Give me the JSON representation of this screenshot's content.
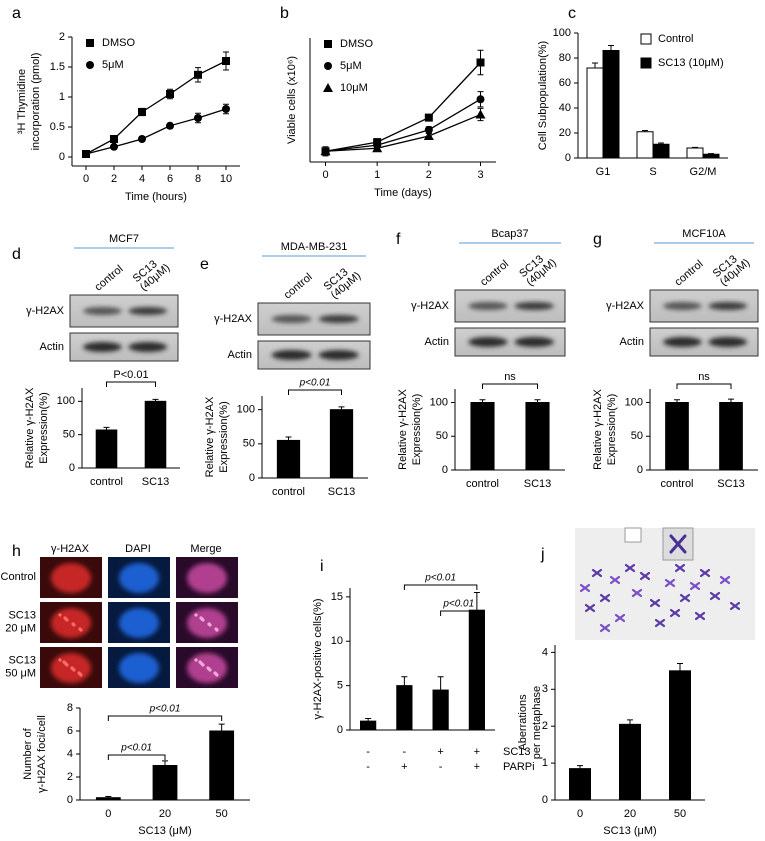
{
  "chart_data": [
    {
      "panel": "a",
      "type": "line",
      "xlabel": "Time (hours)",
      "ylabel": [
        "³H Thymidine",
        "incorporation (pmol)"
      ],
      "x": [
        0,
        2,
        4,
        6,
        8,
        10
      ],
      "xlim": [
        -1,
        11
      ],
      "xticks": [
        0,
        2,
        4,
        6,
        8,
        10
      ],
      "ylim": [
        -0.15,
        2
      ],
      "yticks": [
        0,
        0.5,
        1,
        1.5,
        2
      ],
      "legend": "upper left",
      "series": [
        {
          "name": "DMSO",
          "color": "#000000",
          "marker": "square",
          "values": [
            0.05,
            0.3,
            0.75,
            1.05,
            1.37,
            1.6
          ],
          "errors": [
            0.03,
            0.05,
            0.06,
            0.08,
            0.12,
            0.15
          ]
        },
        {
          "name": "5μM",
          "color": "#000000",
          "marker": "circle",
          "values": [
            0.05,
            0.17,
            0.3,
            0.52,
            0.65,
            0.8
          ],
          "errors": [
            0.02,
            0.03,
            0.04,
            0.04,
            0.08,
            0.08
          ]
        }
      ]
    },
    {
      "panel": "b",
      "type": "line",
      "xlabel": "Time (days)",
      "ylabel": [
        "Viable cells (x10⁶)"
      ],
      "x": [
        0,
        1,
        2,
        3
      ],
      "xlim": [
        -0.3,
        3.3
      ],
      "xticks": [
        0,
        1,
        2,
        3
      ],
      "ylim": [
        -0.25,
        3.8
      ],
      "legend": "upper left",
      "series": [
        {
          "name": "DMSO",
          "color": "#000000",
          "marker": "square",
          "values": [
            0.1,
            0.4,
            1.2,
            3.0
          ],
          "errors": [
            0.15,
            0.08,
            0.1,
            0.4
          ]
        },
        {
          "name": "5μM",
          "color": "#000000",
          "marker": "circle",
          "values": [
            0.1,
            0.3,
            0.8,
            1.8
          ],
          "errors": [
            0.1,
            0.05,
            0.1,
            0.25
          ]
        },
        {
          "name": "10μM",
          "color": "#000000",
          "marker": "triangle",
          "values": [
            0.1,
            0.2,
            0.6,
            1.3
          ],
          "errors": [
            0.1,
            0.05,
            0.08,
            0.2
          ]
        }
      ]
    },
    {
      "panel": "c",
      "type": "bar",
      "ylabel": [
        "Cell Subpopulation(%)"
      ],
      "categories": [
        "G1",
        "S",
        "G2/M"
      ],
      "ylim": [
        0,
        100
      ],
      "yticks": [
        0,
        20,
        40,
        60,
        80,
        100
      ],
      "legend": "upper right",
      "series": [
        {
          "name": "Control",
          "color": "#ffffff",
          "values": [
            72,
            21,
            8
          ],
          "errors": [
            4,
            1,
            0.5
          ]
        },
        {
          "name": "SC13 (10μM)",
          "color": "#000000",
          "values": [
            86,
            11,
            3
          ],
          "errors": [
            4,
            1,
            0.5
          ]
        }
      ]
    },
    {
      "panel": "d",
      "type": "bar",
      "blot": {
        "title": "MCF7",
        "lanes": [
          [
            "control"
          ],
          [
            "SC13",
            "(40μM)"
          ]
        ],
        "rows": [
          "γ-H2AX",
          "Actin"
        ]
      },
      "ylabel": [
        "Relative γ-H2AX",
        "Expression(%)"
      ],
      "categories": [
        "control",
        "SC13"
      ],
      "values": [
        57,
        100
      ],
      "errors": [
        4,
        3
      ],
      "color": "#000000",
      "ylim": [
        0,
        120
      ],
      "yticks": [
        0,
        50,
        100
      ],
      "annotations": [
        "P<0.01"
      ]
    },
    {
      "panel": "e",
      "type": "bar",
      "blot": {
        "title": "MDA-MB-231",
        "lanes": [
          [
            "control"
          ],
          [
            "SC13",
            "(40μM)"
          ]
        ],
        "rows": [
          "γ-H2AX",
          "Actin"
        ]
      },
      "ylabel": [
        "Relative γ-H2AX",
        "Expression(%)"
      ],
      "categories": [
        "control",
        "SC13"
      ],
      "values": [
        55,
        100
      ],
      "errors": [
        5,
        4
      ],
      "color": "#000000",
      "ylim": [
        0,
        120
      ],
      "yticks": [
        0,
        50,
        100
      ],
      "annotations": [
        "p<0.01"
      ]
    },
    {
      "panel": "f",
      "type": "bar",
      "blot": {
        "title": "Bcap37",
        "lanes": [
          [
            "control"
          ],
          [
            "SC13",
            "(40μM)"
          ]
        ],
        "rows": [
          "γ-H2AX",
          "Actin"
        ]
      },
      "ylabel": [
        "Relative γ-H2AX",
        "Expression(%)"
      ],
      "categories": [
        "control",
        "SC13"
      ],
      "values": [
        100,
        100
      ],
      "errors": [
        4,
        4
      ],
      "color": "#000000",
      "ylim": [
        0,
        120
      ],
      "yticks": [
        0,
        50,
        100
      ],
      "annotations": [
        "ns"
      ]
    },
    {
      "panel": "g",
      "type": "bar",
      "blot": {
        "title": "MCF10A",
        "lanes": [
          [
            "control"
          ],
          [
            "SC13",
            "(40μM)"
          ]
        ],
        "rows": [
          "γ-H2AX",
          "Actin"
        ]
      },
      "ylabel": [
        "Relative γ-H2AX",
        "Expression(%)"
      ],
      "categories": [
        "control",
        "SC13"
      ],
      "values": [
        100,
        100
      ],
      "errors": [
        4,
        5
      ],
      "color": "#000000",
      "ylim": [
        0,
        120
      ],
      "yticks": [
        0,
        50,
        100
      ],
      "annotations": [
        "ns"
      ]
    },
    {
      "panel": "h",
      "type": "bar",
      "images": {
        "columns": [
          "γ-H2AX",
          "DAPI",
          "Merge"
        ],
        "rows": [
          [
            "Control"
          ],
          [
            "SC13",
            "20 μM"
          ],
          [
            "SC13",
            "50 μM"
          ]
        ]
      },
      "ylabel": [
        "Number of",
        "γ-H2AX foci/cell"
      ],
      "xlabel": "SC13 (μM)",
      "categories": [
        "0",
        "20",
        "50"
      ],
      "values": [
        0.2,
        3,
        6
      ],
      "errors": [
        0.1,
        0.4,
        0.6
      ],
      "color": "#000000",
      "ylim": [
        0,
        8
      ],
      "yticks": [
        0,
        2,
        4,
        6,
        8
      ],
      "annotations": [
        "p<0.01",
        "p<0.01"
      ]
    },
    {
      "panel": "i",
      "type": "bar",
      "ylabel": [
        "γ-H2AX-positive cells(%)"
      ],
      "categories": [
        null,
        null,
        null,
        null
      ],
      "values": [
        1,
        5,
        4.5,
        13.5
      ],
      "errors": [
        0.3,
        1,
        1.5,
        2
      ],
      "color": "#000000",
      "ylim": [
        0,
        16
      ],
      "yticks": [
        0,
        5,
        10,
        15
      ],
      "conditions": [
        {
          "name": "SC13",
          "marks": [
            "-",
            "-",
            "+",
            "+"
          ]
        },
        {
          "name": "PARPi",
          "marks": [
            "-",
            "+",
            "-",
            "+"
          ]
        }
      ],
      "annotations": [
        "p<0.01",
        "p<0.01"
      ]
    },
    {
      "panel": "j",
      "type": "bar",
      "ylabel": [
        "Aberrations",
        "per metaphase"
      ],
      "xlabel": "SC13 (μM)",
      "categories": [
        "0",
        "20",
        "50"
      ],
      "values": [
        0.85,
        2.05,
        3.5
      ],
      "errors": [
        0.08,
        0.12,
        0.2
      ],
      "color": "#000000",
      "ylim": [
        0,
        4.2
      ],
      "yticks": [
        0,
        1,
        2,
        3,
        4
      ]
    }
  ]
}
